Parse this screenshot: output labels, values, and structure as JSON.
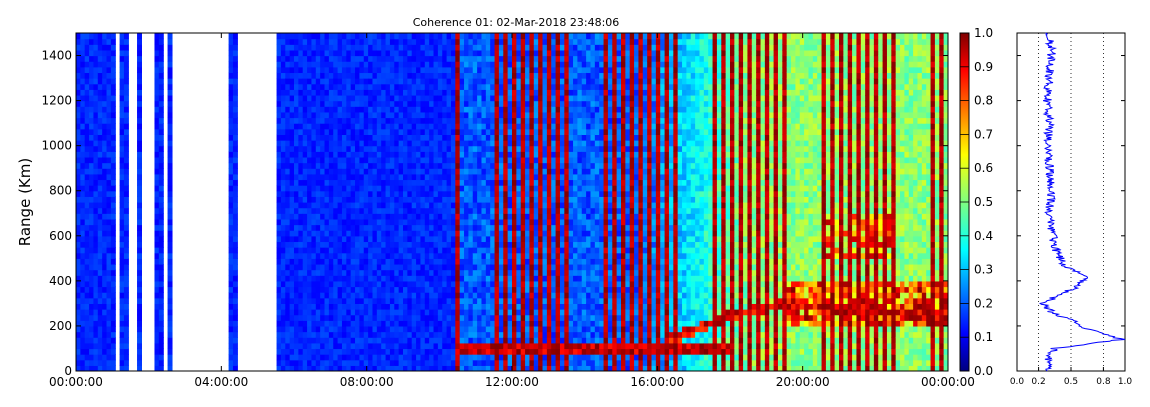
{
  "chart_data": [
    {
      "type": "heatmap",
      "title": "Coherence 01: 02-Mar-2018 23:48:06",
      "xlabel": "",
      "ylabel": "Range (Km)",
      "x_tick_labels": [
        "00:00:00",
        "04:00:00",
        "08:00:00",
        "12:00:00",
        "16:00:00",
        "20:00:00",
        "00:00:00"
      ],
      "xlim_hours": [
        0,
        24
      ],
      "y_ticks": [
        0,
        200,
        400,
        600,
        800,
        1000,
        1200,
        1400
      ],
      "ylim": [
        0,
        1500
      ],
      "value_range": [
        0,
        1
      ],
      "colormap": "jet",
      "missing_data_intervals_hours": [
        [
          1.05,
          1.2
        ],
        [
          1.4,
          1.65
        ],
        [
          1.85,
          2.15
        ],
        [
          2.35,
          2.5
        ],
        [
          2.65,
          4.2
        ],
        [
          4.5,
          5.5
        ]
      ],
      "features": {
        "low_coherence_until_hours": 10.5,
        "periodic_high_stripes_from_hours": 10.5,
        "echo_layer_range_km": 100,
        "echo_layer_hours": [
          10.5,
          18.0
        ],
        "rising_layer": [
          [
            16.5,
            150
          ],
          [
            18,
            250
          ],
          [
            19.5,
            300
          ],
          [
            21,
            280
          ],
          [
            23.5,
            250
          ]
        ],
        "strong_echo_region": {
          "hours": [
            19.5,
            24
          ],
          "range_km": [
            200,
            400
          ]
        },
        "upper_echo_region": {
          "hours": [
            20.5,
            22.5
          ],
          "range_km": [
            500,
            700
          ]
        }
      },
      "colorbar": {
        "ticks": [
          "0.0",
          "0.1",
          "0.2",
          "0.3",
          "0.4",
          "0.5",
          "0.6",
          "0.7",
          "0.8",
          "0.9",
          "1.0"
        ],
        "range": [
          0,
          1
        ]
      }
    },
    {
      "type": "line",
      "title": "",
      "x_tick_labels": [
        "0.0",
        "0.2",
        "0.5",
        "0.8",
        "1.0"
      ],
      "xlim": [
        0,
        1
      ],
      "ylim": [
        0,
        1500
      ],
      "dotted_gridlines_x": [
        0.2,
        0.5,
        0.8
      ],
      "line_color": "#0000ff",
      "profile": [
        [
          0,
          0.3
        ],
        [
          50,
          0.28
        ],
        [
          100,
          0.35
        ],
        [
          140,
          0.97
        ],
        [
          160,
          0.85
        ],
        [
          190,
          0.62
        ],
        [
          220,
          0.55
        ],
        [
          250,
          0.35
        ],
        [
          300,
          0.24
        ],
        [
          340,
          0.4
        ],
        [
          380,
          0.58
        ],
        [
          420,
          0.65
        ],
        [
          460,
          0.45
        ],
        [
          500,
          0.4
        ],
        [
          550,
          0.35
        ],
        [
          600,
          0.33
        ],
        [
          700,
          0.3
        ],
        [
          800,
          0.32
        ],
        [
          900,
          0.3
        ],
        [
          1000,
          0.28
        ],
        [
          1100,
          0.3
        ],
        [
          1200,
          0.28
        ],
        [
          1300,
          0.3
        ],
        [
          1400,
          0.32
        ],
        [
          1500,
          0.3
        ]
      ]
    }
  ]
}
